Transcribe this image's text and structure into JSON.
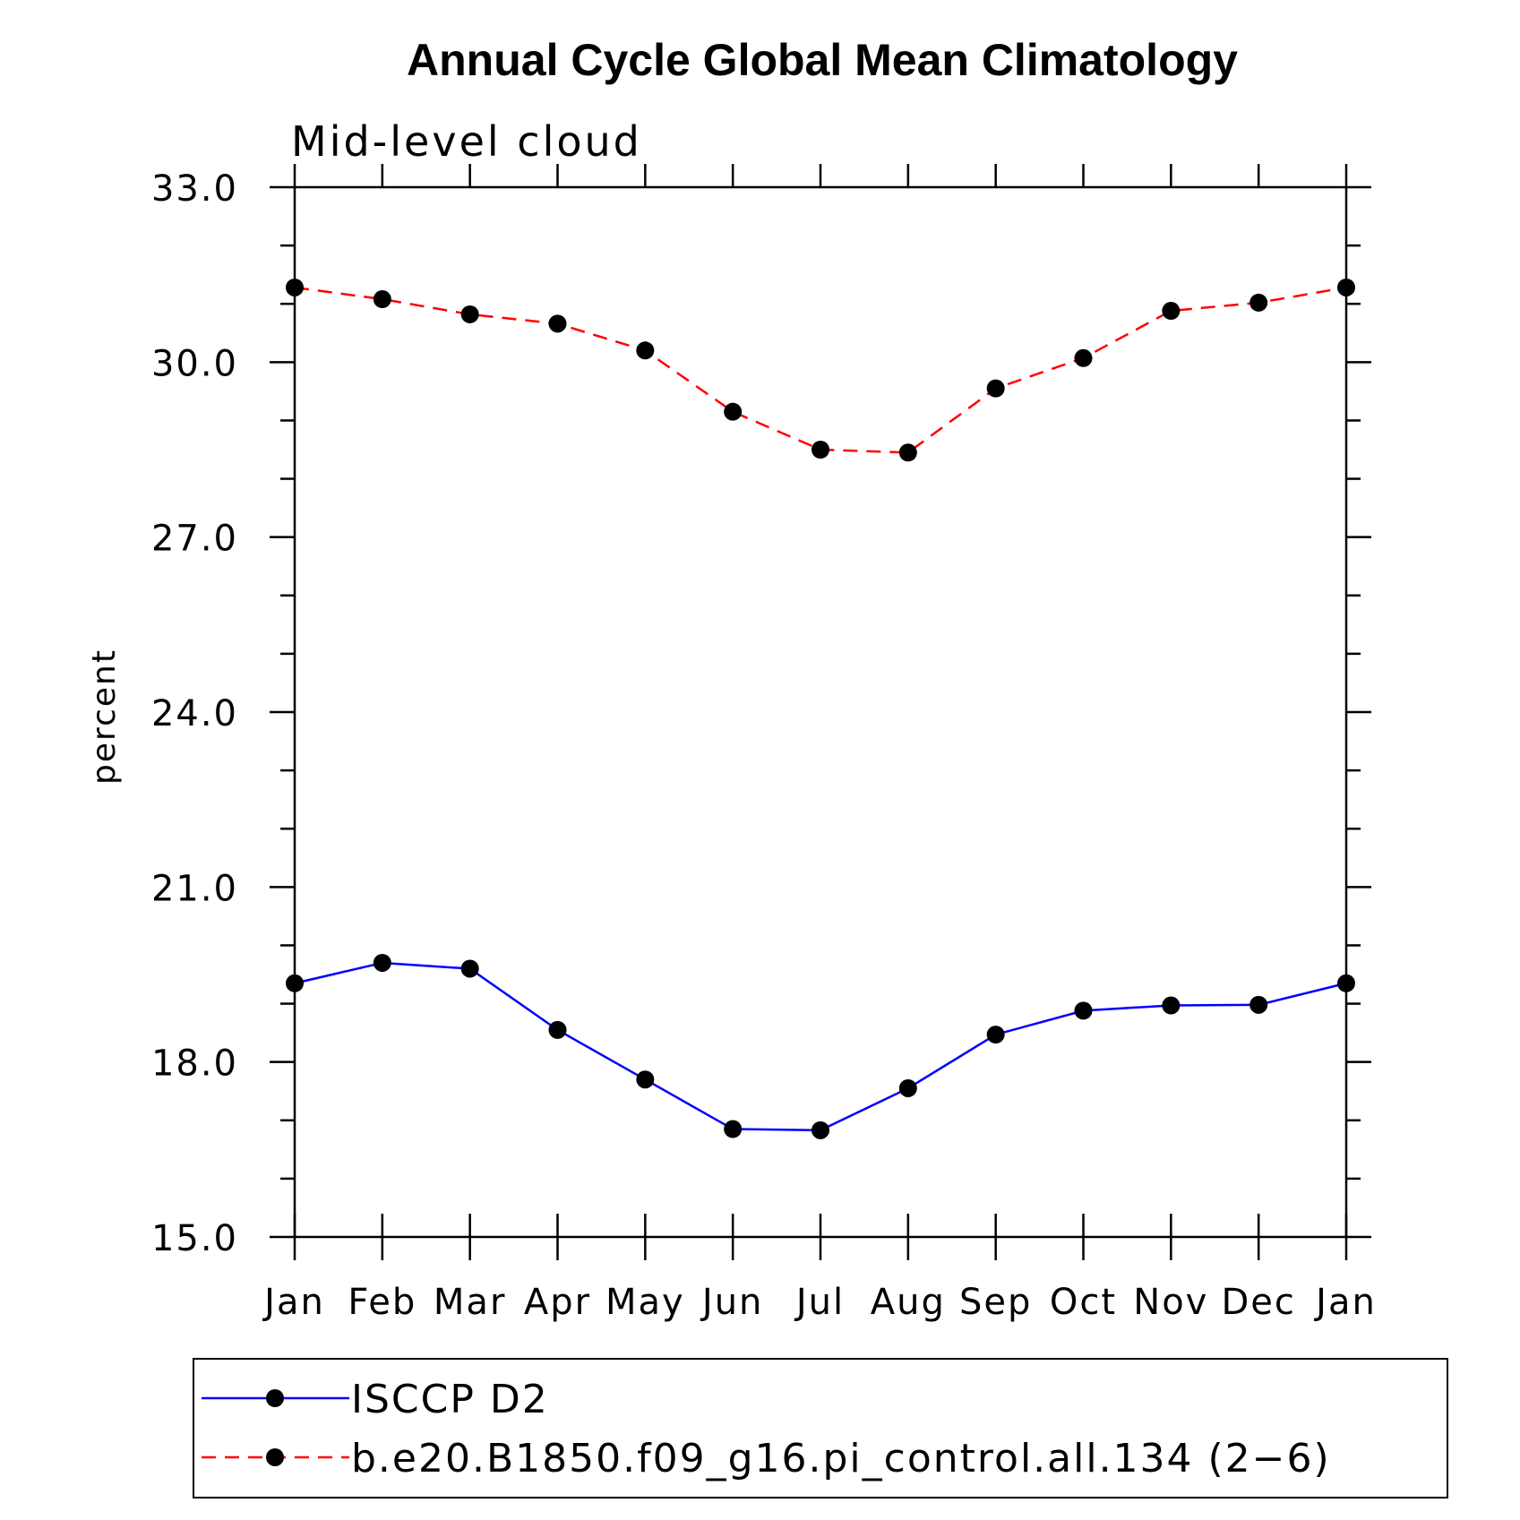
{
  "chart_data": {
    "type": "line",
    "title": "Annual Cycle Global Mean Climatology",
    "subtitle": "Mid-level cloud",
    "ylabel": "percent",
    "ylim": [
      15.0,
      33.0
    ],
    "yticks": [
      "15.0",
      "18.0",
      "21.0",
      "24.0",
      "27.0",
      "30.0",
      "33.0"
    ],
    "categories": [
      "Jan",
      "Feb",
      "Mar",
      "Apr",
      "May",
      "Jun",
      "Jul",
      "Aug",
      "Sep",
      "Oct",
      "Nov",
      "Dec",
      "Jan"
    ],
    "grid": false,
    "legend_position": "bottom",
    "series": [
      {
        "name": "ISCCP D2",
        "color": "#0000ff",
        "line_style": "solid",
        "marker": "filled-circle",
        "values": [
          19.35,
          19.7,
          19.6,
          18.55,
          17.7,
          16.85,
          16.83,
          17.55,
          18.47,
          18.88,
          18.97,
          18.98,
          19.35
        ]
      },
      {
        "name": "b.e20.B1850.f09_g16.pi_control.all.134 (2−6)",
        "color": "#ff0000",
        "line_style": "dashed",
        "marker": "filled-circle",
        "values": [
          31.28,
          31.08,
          30.82,
          30.66,
          30.2,
          29.15,
          28.5,
          28.45,
          29.55,
          30.07,
          30.88,
          31.02,
          31.28
        ]
      }
    ]
  }
}
